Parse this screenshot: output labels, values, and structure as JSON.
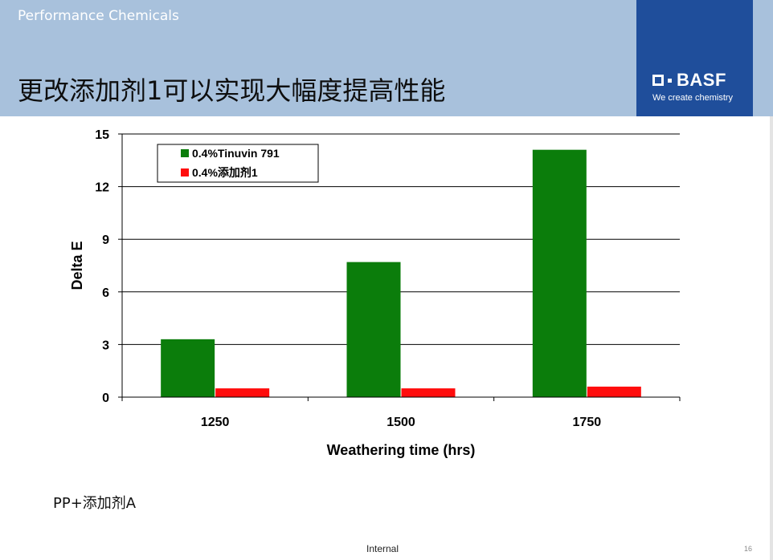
{
  "header": {
    "division": "Performance Chemicals",
    "title": "更改添加剂1可以实现大幅度提高性能"
  },
  "brand": {
    "name": "BASF",
    "tagline": "We create chemistry",
    "color": "#1f4e9b"
  },
  "chart_data": {
    "type": "bar",
    "title": "",
    "xlabel": "Weathering time (hrs)",
    "ylabel": "Delta E",
    "categories": [
      "1250",
      "1500",
      "1750"
    ],
    "yticks": [
      "0",
      "3",
      "6",
      "9",
      "12",
      "15"
    ],
    "ylim": [
      0,
      15
    ],
    "grid": true,
    "legend_position": "top-left",
    "series": [
      {
        "name": "0.4%Tinuvin 791",
        "color": "#0b7d0b",
        "values": [
          3.3,
          7.7,
          14.1
        ]
      },
      {
        "name": "0.4%添加剂1",
        "color": "#ff0d0d",
        "values": [
          0.5,
          0.5,
          0.6
        ]
      }
    ]
  },
  "note": "PP+添加剂A",
  "footer": {
    "classification": "Internal",
    "page_number": "16"
  }
}
